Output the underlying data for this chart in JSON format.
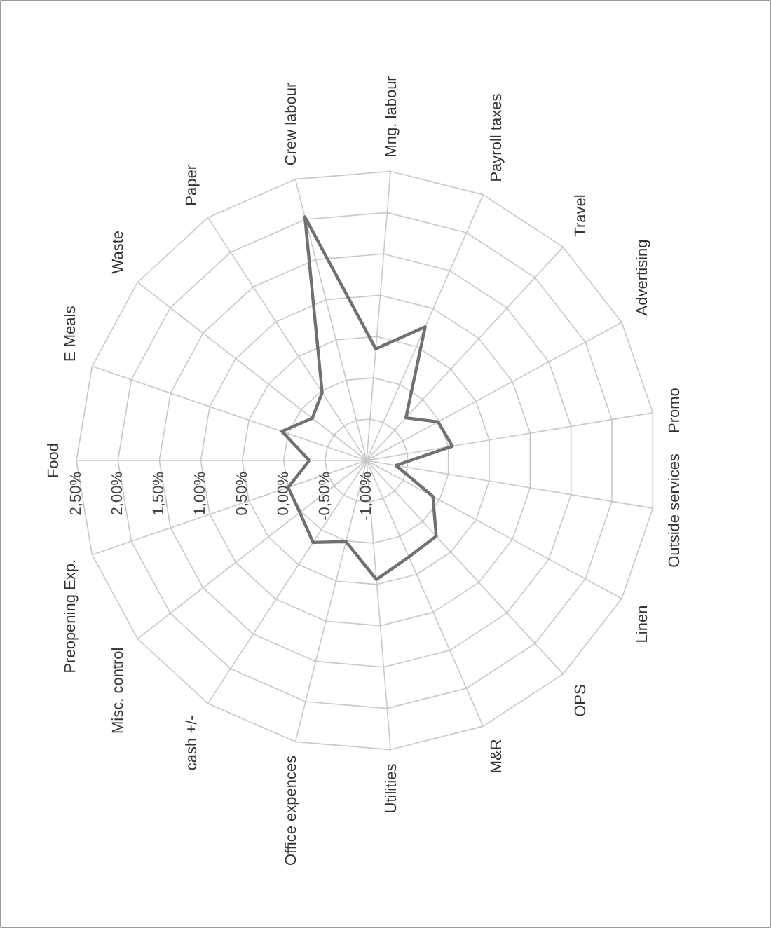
{
  "chart_data": {
    "type": "radar",
    "categories": [
      "Food",
      "E Meals",
      "Waste",
      "Paper",
      "Crew labour",
      "Mng. labour",
      "Payroll taxes",
      "Travel",
      "Advertising",
      "Promo",
      "Outside services",
      "Linen",
      "OPS",
      "M&R",
      "Utilities",
      "Office expences",
      "cash +/-",
      "Misc. control",
      "Preopening Exp."
    ],
    "series": [
      {
        "color": "#707070",
        "values": [
          -0.31,
          0.08,
          -0.17,
          -0.02,
          2.03,
          0.35,
          0.76,
          -0.3,
          -0.02,
          0.05,
          -0.64,
          -0.09,
          0.24,
          0.27,
          0.44,
          0.01,
          0.18,
          0.02,
          0.0
        ]
      }
    ],
    "ylim": [
      -1,
      2.5
    ],
    "yticks": [
      {
        "value": -1,
        "label": "-1,00%"
      },
      {
        "value": -0.5,
        "label": "-0,50%"
      },
      {
        "value": 0,
        "label": "0,00%"
      },
      {
        "value": 0.5,
        "label": "0,50%"
      },
      {
        "value": 1,
        "label": "1,00%"
      },
      {
        "value": 1.5,
        "label": "1,50%"
      },
      {
        "value": 2,
        "label": "2,00%"
      },
      {
        "value": 2.5,
        "label": "2,50%"
      }
    ],
    "grid": true,
    "marker": "none",
    "line_style": "solid"
  }
}
